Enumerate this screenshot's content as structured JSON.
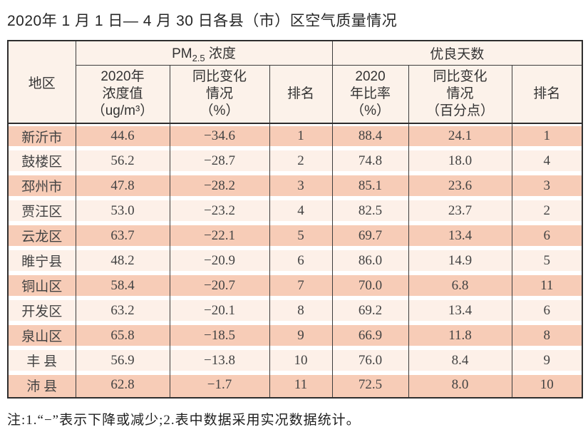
{
  "page": {
    "title": "2020年 1 月 1 日— 4 月 30 日各县（市）区空气质量情况",
    "note": "注:1.“−”表示下降或减少;2.表中数据采用实况数据统计。"
  },
  "table": {
    "corner_header": "地区",
    "group_headers": {
      "pm25": {
        "prefix": "PM",
        "sub": "2.5",
        "suffix": " 浓度"
      },
      "good_days": "优良天数"
    },
    "sub_headers": [
      "2020年\n浓度值\n（ug/m³）",
      "同比变化\n情况\n（%）",
      "排名",
      "2020\n年比率\n（%）",
      "同比变化\n情况\n（百分点）",
      "排名"
    ],
    "rows": [
      [
        "新沂市",
        "44.6",
        "−34.6",
        "1",
        "88.4",
        "24.1",
        "1"
      ],
      [
        "鼓楼区",
        "56.2",
        "−28.7",
        "2",
        "74.8",
        "18.0",
        "4"
      ],
      [
        "邳州市",
        "47.8",
        "−28.2",
        "3",
        "85.1",
        "23.6",
        "3"
      ],
      [
        "贾汪区",
        "53.0",
        "−23.2",
        "4",
        "82.5",
        "23.7",
        "2"
      ],
      [
        "云龙区",
        "63.7",
        "−22.1",
        "5",
        "69.7",
        "13.4",
        "6"
      ],
      [
        "睢宁县",
        "48.2",
        "−20.9",
        "6",
        "86.0",
        "14.9",
        "5"
      ],
      [
        "铜山区",
        "58.4",
        "−20.7",
        "7",
        "70.0",
        "6.8",
        "11"
      ],
      [
        "开发区",
        "63.2",
        "−20.1",
        "8",
        "69.2",
        "13.4",
        "6"
      ],
      [
        "泉山区",
        "65.8",
        "−18.5",
        "9",
        "66.9",
        "11.8",
        "8"
      ],
      [
        "丰 县",
        "56.9",
        "−13.8",
        "10",
        "76.0",
        "8.4",
        "9"
      ],
      [
        "沛 县",
        "62.8",
        "−1.7",
        "11",
        "72.5",
        "8.0",
        "10"
      ]
    ],
    "colors": {
      "stripe_odd": "#f7ccb7",
      "stripe_even": "#fdf0e8",
      "header_bg": "#fcf2ea",
      "grid_line": "#3c3c3c",
      "frame": "#2e2e2e"
    }
  }
}
